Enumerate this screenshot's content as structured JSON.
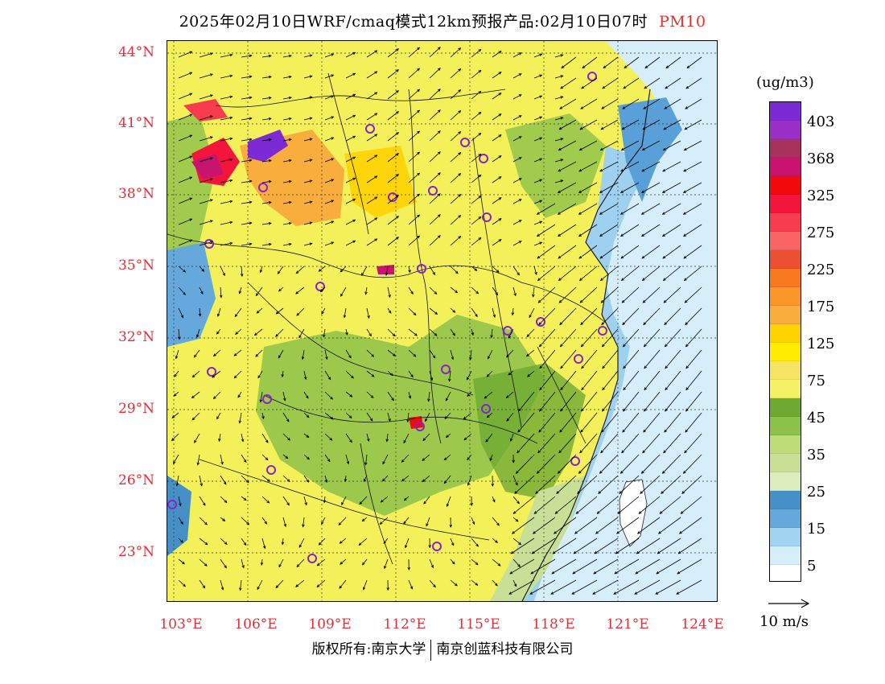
{
  "title": {
    "main": "2025年02月10日WRF/cmaq模式12km预报产品:02月10日07时",
    "pollutant": "PM10"
  },
  "axes": {
    "lat_ticks": [
      "44°N",
      "41°N",
      "38°N",
      "35°N",
      "32°N",
      "29°N",
      "26°N",
      "23°N"
    ],
    "lon_ticks": [
      "103°E",
      "106°E",
      "109°E",
      "112°E",
      "115°E",
      "118°E",
      "121°E",
      "124°E"
    ]
  },
  "colorbar": {
    "unit": "(ug/m3)",
    "tick_labels": [
      "403",
      "368",
      "325",
      "275",
      "225",
      "175",
      "125",
      "75",
      "45",
      "35",
      "25",
      "15",
      "5"
    ],
    "levels_top_to_bottom": [
      {
        "value": "",
        "color": "#7b2ad6"
      },
      {
        "value": "403",
        "color": "#9b30c8"
      },
      {
        "value": "",
        "color": "#a8325c"
      },
      {
        "value": "368",
        "color": "#c8146e"
      },
      {
        "value": "",
        "color": "#f00a0a"
      },
      {
        "value": "325",
        "color": "#f5143c"
      },
      {
        "value": "",
        "color": "#f83c50"
      },
      {
        "value": "275",
        "color": "#fb6464"
      },
      {
        "value": "",
        "color": "#ec5030"
      },
      {
        "value": "225",
        "color": "#f87820"
      },
      {
        "value": "",
        "color": "#fb9628"
      },
      {
        "value": "175",
        "color": "#f9ad3c"
      },
      {
        "value": "",
        "color": "#ffd200"
      },
      {
        "value": "125",
        "color": "#ffec00"
      },
      {
        "value": "",
        "color": "#f7e464"
      },
      {
        "value": "75",
        "color": "#f4f264"
      },
      {
        "value": "",
        "color": "#6eaa32"
      },
      {
        "value": "45",
        "color": "#8cc24a"
      },
      {
        "value": "",
        "color": "#bedc78"
      },
      {
        "value": "35",
        "color": "#c8e096"
      },
      {
        "value": "",
        "color": "#dceebe"
      },
      {
        "value": "25",
        "color": "#4690c8"
      },
      {
        "value": "",
        "color": "#64a8dc"
      },
      {
        "value": "15",
        "color": "#a0d4f0"
      },
      {
        "value": "",
        "color": "#d4eefa"
      },
      {
        "value": "5",
        "color": "#ffffff"
      }
    ]
  },
  "wind_reference": {
    "label": "10 m/s"
  },
  "footer": {
    "copyright": "版权所有:南京大学",
    "company": "南京创蓝科技有限公司"
  }
}
